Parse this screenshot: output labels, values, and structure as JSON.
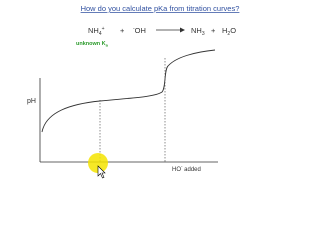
{
  "header": {
    "title": "How do you calculate pKa from titration curves?"
  },
  "reaction": {
    "acid": {
      "base": "NH",
      "sub": "4",
      "sup": "+"
    },
    "plus_left": "+",
    "base": {
      "sup": "-",
      "base": "OH"
    },
    "product1": {
      "base": "NH",
      "sub": "3"
    },
    "plus_right": "+",
    "product2": {
      "base": "H",
      "sub": "2",
      "tail": "O"
    },
    "annotation": {
      "text": "unknown K",
      "sub": "a"
    }
  },
  "axes": {
    "y_label": "pH",
    "x_label": {
      "formula": "HO",
      "sup": "-",
      "text": " added"
    }
  }
}
